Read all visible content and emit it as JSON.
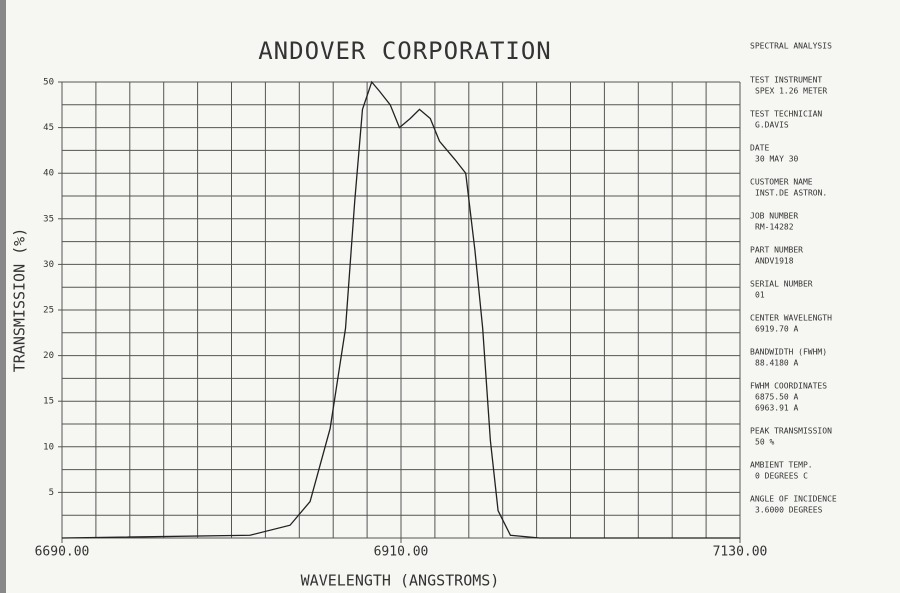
{
  "chart_data": {
    "type": "line",
    "title": "ANDOVER CORPORATION",
    "x_label": "WAVELENGTH (ANGSTROMS)",
    "y_label": "TRANSMISSION (%)",
    "x": [
      6690,
      6812,
      6838,
      6851,
      6864,
      6874,
      6880,
      6885,
      6891,
      6896,
      6903,
      6909,
      6916,
      6922,
      6929,
      6935,
      6945,
      6952,
      6958,
      6963,
      6968,
      6973,
      6981,
      7000,
      7130
    ],
    "series": [
      {
        "color": "#222222",
        "values": [
          0,
          0.3,
          1.4,
          4,
          12,
          23,
          37,
          47,
          50,
          49,
          47.5,
          45,
          46,
          47,
          46,
          43.5,
          41.5,
          40,
          31.5,
          23,
          10.7,
          3,
          0.3,
          0,
          0
        ]
      }
    ],
    "xlim": [
      6690,
      7130
    ],
    "ylim": [
      0,
      50
    ],
    "xticks": [
      {
        "value": 6690,
        "label": "6690.00"
      },
      {
        "value": 6910,
        "label": "6910.00"
      },
      {
        "value": 7130,
        "label": "7130.00"
      }
    ],
    "yticks": [
      5,
      10,
      15,
      20,
      25,
      30,
      35,
      40,
      45,
      50
    ],
    "xgrid": [
      6690,
      6712,
      6734,
      6756,
      6778,
      6800,
      6822,
      6844,
      6866,
      6888,
      6910,
      6932,
      6954,
      6976,
      6998,
      7020,
      7042,
      7064,
      7086,
      7108,
      7130
    ],
    "ygrid": [
      0,
      2.5,
      5,
      7.5,
      10,
      12.5,
      15,
      17.5,
      20,
      22.5,
      25,
      27.5,
      30,
      32.5,
      35,
      37.5,
      40,
      42.5,
      45,
      47.5,
      50
    ],
    "grid": true
  },
  "panel": {
    "heading": "SPECTRAL ANALYSIS",
    "items": [
      {
        "label": "TEST INSTRUMENT",
        "lines": [
          "SPEX 1.26 METER"
        ]
      },
      {
        "label": "TEST TECHNICIAN",
        "lines": [
          "G.DAVIS"
        ]
      },
      {
        "label": "DATE",
        "lines": [
          "30 MAY 30"
        ]
      },
      {
        "label": "CUSTOMER NAME",
        "lines": [
          "INST.DE ASTRON."
        ]
      },
      {
        "label": "JOB NUMBER",
        "lines": [
          "RM-14282"
        ]
      },
      {
        "label": "PART NUMBER",
        "lines": [
          "ANDV1918"
        ]
      },
      {
        "label": "SERIAL NUMBER",
        "lines": [
          "01"
        ]
      },
      {
        "label": "CENTER WAVELENGTH",
        "lines": [
          "6919.70 A"
        ]
      },
      {
        "label": "BANDWIDTH (FWHM)",
        "lines": [
          "88.4180 A"
        ]
      },
      {
        "label": "FWHM COORDINATES",
        "lines": [
          "6875.50 A",
          "6963.91 A"
        ]
      },
      {
        "label": "PEAK TRANSMISSION",
        "lines": [
          "50 %"
        ]
      },
      {
        "label": "AMBIENT TEMP.",
        "lines": [
          "0 DEGREES C"
        ]
      },
      {
        "label": "ANGLE OF INCIDENCE",
        "lines": [
          "3.6000 DEGREES"
        ]
      }
    ]
  }
}
